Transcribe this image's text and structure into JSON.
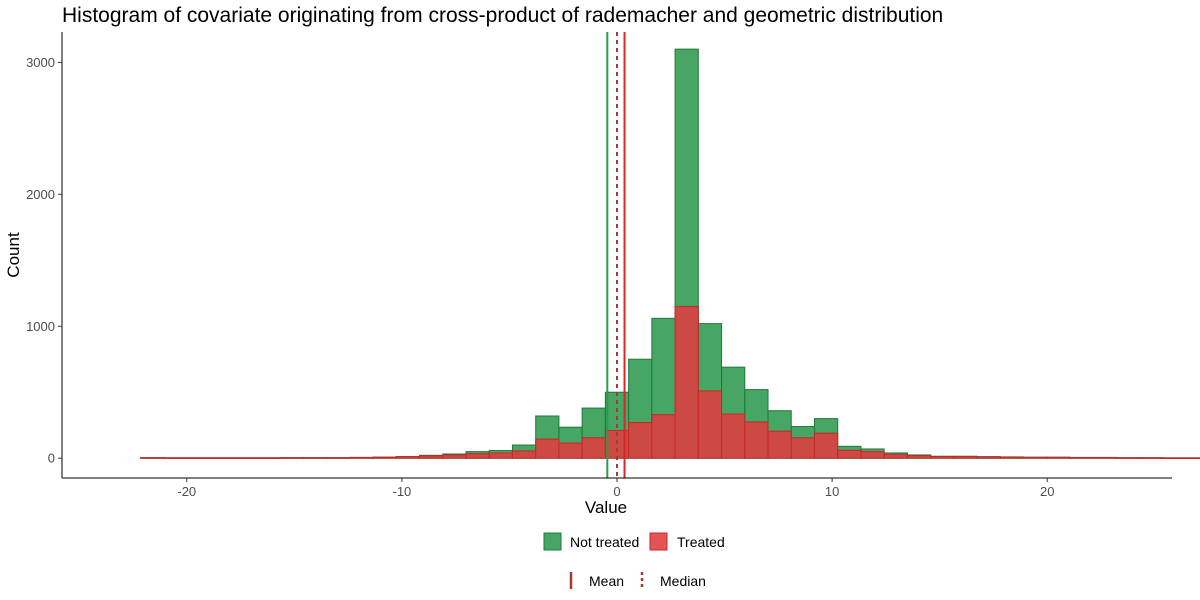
{
  "chart_data": {
    "type": "bar",
    "title": "Histogram of covariate originating from cross-product of rademacher and geometric distribution",
    "xlabel": "Value",
    "ylabel": "Count",
    "xlim": [
      -25.8,
      25.8
    ],
    "ylim": [
      -150,
      3230
    ],
    "xticks": [
      -20,
      -10,
      0,
      10,
      20
    ],
    "yticks": [
      0,
      1000,
      2000,
      3000
    ],
    "grid": false,
    "legend_position": "bottom",
    "bin_width": 1.08,
    "bin_start": -23.22,
    "series": [
      {
        "name": "Not treated",
        "color": "#2e9a4e",
        "border": "#1f7a3a",
        "values": [
          0,
          4,
          3,
          3,
          3,
          3,
          3,
          4,
          4,
          4,
          6,
          8,
          13,
          22,
          32,
          50,
          58,
          100,
          320,
          235,
          380,
          500,
          750,
          1060,
          3100,
          1020,
          690,
          520,
          360,
          240,
          300,
          90,
          70,
          40,
          25,
          15,
          15,
          12,
          10,
          8,
          8,
          6,
          6,
          4,
          4,
          3,
          3
        ]
      },
      {
        "name": "Treated",
        "color": "#e03c3f",
        "border": "#c62828",
        "values": [
          0,
          4,
          3,
          3,
          3,
          3,
          3,
          4,
          4,
          4,
          6,
          8,
          12,
          18,
          25,
          35,
          40,
          55,
          145,
          115,
          155,
          210,
          270,
          330,
          1150,
          510,
          335,
          275,
          205,
          155,
          190,
          60,
          50,
          30,
          20,
          12,
          12,
          10,
          8,
          6,
          6,
          5,
          5,
          3,
          3,
          2,
          2
        ]
      }
    ],
    "reference_lines": [
      {
        "label": "Not treated mean",
        "x": -0.45,
        "color": "#2e9a4e",
        "style": "solid"
      },
      {
        "label": "Treated mean",
        "x": 0.35,
        "color": "#d62728",
        "style": "solid"
      },
      {
        "label": "Median",
        "x": 0,
        "color": "#a63a2c",
        "style": "dashed"
      }
    ],
    "legend_fill": [
      "Not treated",
      "Treated"
    ],
    "legend_lines": [
      {
        "label": "Mean",
        "style": "solid"
      },
      {
        "label": "Median",
        "style": "dashed"
      }
    ],
    "legend_line_color": "#a63a2c"
  }
}
